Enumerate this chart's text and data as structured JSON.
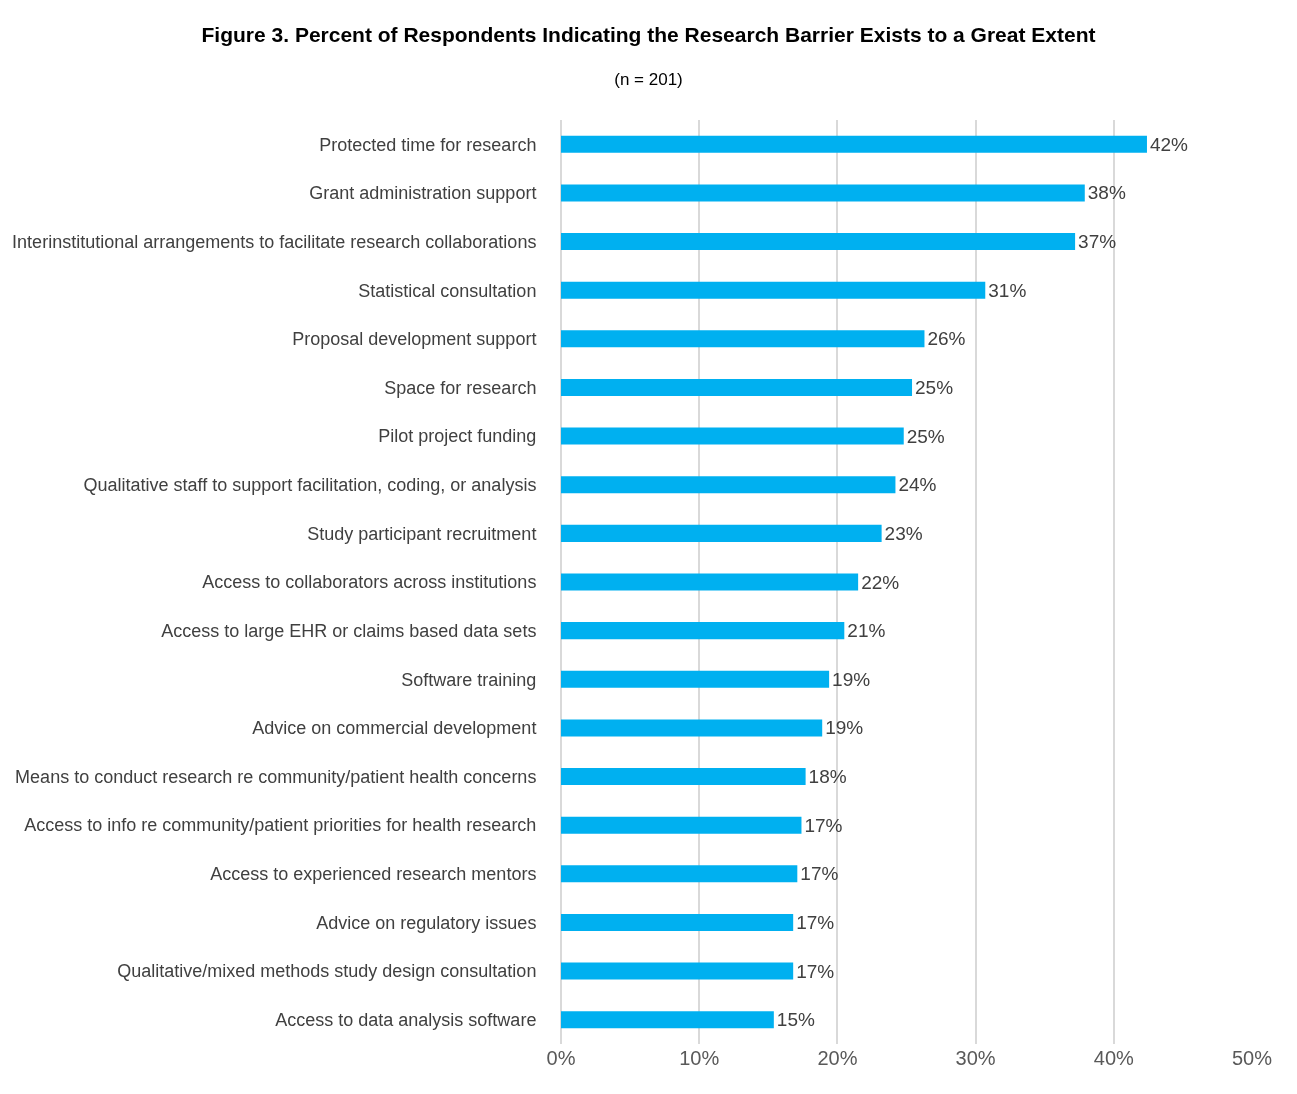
{
  "chart_data": {
    "type": "bar",
    "orientation": "horizontal",
    "title": "Figure 3. Percent of Respondents Indicating the Research Barrier Exists to a Great Extent",
    "subtitle": "(n = 201)",
    "categories": [
      "Protected time for research",
      "Grant administration support",
      "Interinstitutional arrangements to facilitate research collaborations",
      "Statistical consultation",
      "Proposal development support",
      "Space for research",
      "Pilot project funding",
      "Qualitative staff to support facilitation, coding, or analysis",
      "Study participant recruitment",
      "Access to collaborators across institutions",
      "Access to large EHR or claims based data sets",
      "Software training",
      "Advice on commercial development",
      "Means to conduct research re community/patient health concerns",
      "Access to info re community/patient priorities for health research",
      "Access to experienced research mentors",
      "Advice on regulatory issues",
      "Qualitative/mixed methods study design consultation",
      "Access to data analysis software"
    ],
    "values": [
      42.4,
      37.9,
      37.2,
      30.7,
      26.3,
      25.4,
      24.8,
      24.2,
      23.2,
      21.5,
      20.5,
      19.4,
      18.9,
      17.7,
      17.4,
      17.1,
      16.8,
      16.8,
      15.4
    ],
    "value_labels": [
      "42%",
      "38%",
      "37%",
      "31%",
      "26%",
      "25%",
      "25%",
      "24%",
      "23%",
      "22%",
      "21%",
      "19%",
      "19%",
      "18%",
      "17%",
      "17%",
      "17%",
      "17%",
      "15%"
    ],
    "color": "#00b0f0",
    "xlim": [
      0,
      50
    ],
    "xticks": [
      {
        "value": 0,
        "label": "0%"
      },
      {
        "value": 10,
        "label": "10%"
      },
      {
        "value": 20,
        "label": "20%"
      },
      {
        "value": 30,
        "label": "30%"
      },
      {
        "value": 40,
        "label": "40%"
      },
      {
        "value": 50,
        "label": "50%"
      }
    ],
    "grid": "x"
  }
}
